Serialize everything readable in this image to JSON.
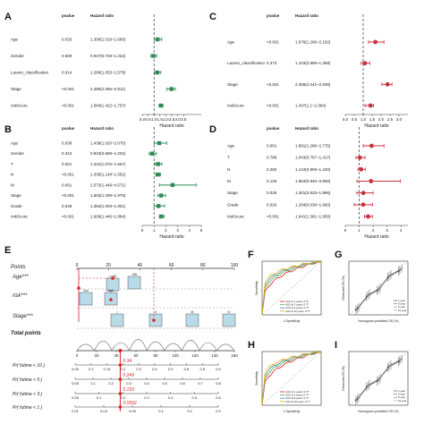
{
  "chart_data": [
    {
      "panel": "A",
      "type": "forest",
      "headers": {
        "p": "pvalue",
        "hr": "Hazard ratio"
      },
      "xlabel": "Hazard ratio",
      "xlim": [
        0,
        5
      ],
      "ref": 1,
      "xticks": [
        "0.0",
        "0.5",
        "1.0",
        "1.5",
        "2.0",
        "2.5",
        "3.0",
        "3.5"
      ],
      "color": "#2e8b57",
      "rows": [
        {
          "label": "Age",
          "p": "0.033",
          "hr": "1.300(1.019~1.660)",
          "est": 1.3,
          "lo": 1.02,
          "hi": 1.66
        },
        {
          "label": "Gender",
          "p": "0.669",
          "hr": "0.947(0.728~1.234)",
          "est": 0.95,
          "lo": 0.73,
          "hi": 1.23
        },
        {
          "label": "Lauren_classification",
          "p": "0.014",
          "hr": "1.280(1.053~1.579)",
          "est": 1.28,
          "lo": 1.05,
          "hi": 1.58
        },
        {
          "label": "Stage",
          "p": "<0.001",
          "hr": "2.480(2.065~2.811)",
          "est": 2.48,
          "lo": 2.07,
          "hi": 2.81
        },
        {
          "label": "riskScore",
          "p": "<0.001",
          "hr": "1.584(1.422~1.757)",
          "est": 1.58,
          "lo": 1.42,
          "hi": 1.76
        }
      ]
    },
    {
      "panel": "B",
      "type": "forest",
      "headers": {
        "p": "pvalue",
        "hr": "Hazard ratio"
      },
      "xlabel": "Hazard ratio",
      "xlim": [
        0,
        5
      ],
      "ref": 1,
      "xticks": [
        "0",
        "1",
        "2",
        "3",
        "4",
        "5"
      ],
      "color": "#2e8b57",
      "rows": [
        {
          "label": "Age",
          "p": "0.038",
          "hr": "1.439(1.020~2.070)",
          "est": 1.44,
          "lo": 1.02,
          "hi": 2.07
        },
        {
          "label": "Gender",
          "p": "0.344",
          "hr": "0.843(0.589~1.202)",
          "est": 0.84,
          "lo": 0.59,
          "hi": 1.2
        },
        {
          "label": "T",
          "p": "0.001",
          "hr": "1.341(1.070~1.667)",
          "est": 1.34,
          "lo": 1.07,
          "hi": 1.67
        },
        {
          "label": "N",
          "p": "<0.001",
          "hr": "1.335(1.148~1.552)",
          "est": 1.34,
          "lo": 1.15,
          "hi": 1.55
        },
        {
          "label": "M",
          "p": "0.001",
          "hr": "2.573(1.449~4.571)",
          "est": 2.57,
          "lo": 1.45,
          "hi": 4.57
        },
        {
          "label": "Stage",
          "p": "<0.001",
          "hr": "1.603(1.299~1.978)",
          "est": 1.6,
          "lo": 1.3,
          "hi": 1.98
        },
        {
          "label": "Grade",
          "p": "0.048",
          "hr": "1.384(1.003~1.901)",
          "est": 1.38,
          "lo": 1.0,
          "hi": 1.9
        },
        {
          "label": "riskScore",
          "p": "<0.001",
          "hr": "1.609(1.446~1.864)",
          "est": 1.61,
          "lo": 1.45,
          "hi": 1.86
        }
      ]
    },
    {
      "panel": "C",
      "type": "forest",
      "headers": {
        "p": "pvalue",
        "hr": "Hazard ratio"
      },
      "xlabel": "Hazard ratio",
      "xlim": [
        0,
        3.5
      ],
      "ref": 1,
      "xticks": [
        "0.0",
        "0.5",
        "1.0",
        "1.5",
        "2.0",
        "2.5",
        "3.0"
      ],
      "color": "#c8323c",
      "rows": [
        {
          "label": "Age",
          "p": "<0.001",
          "hr": "1.676(1.299~2.162)",
          "est": 1.68,
          "lo": 1.3,
          "hi": 2.16
        },
        {
          "label": "Lauren_classification",
          "p": "0.373",
          "hr": "1.103(0.889~1.368)",
          "est": 1.1,
          "lo": 0.89,
          "hi": 1.37
        },
        {
          "label": "Stage",
          "p": "<0.001",
          "hr": "2.359(2.042~2.608)",
          "est": 2.36,
          "lo": 2.04,
          "hi": 2.61
        },
        {
          "label": "riskScore",
          "p": "<0.001",
          "hr": "1.407(1.1~1.584)",
          "est": 1.41,
          "lo": 1.1,
          "hi": 1.58
        }
      ]
    },
    {
      "panel": "D",
      "type": "forest",
      "headers": {
        "p": "pvalue",
        "hr": "Hazard ratio"
      },
      "xlabel": "Hazard ratio",
      "xlim": [
        0,
        4.5
      ],
      "ref": 1,
      "xticks": [
        "0",
        "1",
        "2",
        "3",
        "4"
      ],
      "color": "#c8323c",
      "rows": [
        {
          "label": "Age",
          "p": "0.001",
          "hr": "1.891(1.286~2.776)",
          "est": 1.89,
          "lo": 1.29,
          "hi": 2.78
        },
        {
          "label": "T",
          "p": "0.788",
          "hr": "1.043(0.767~1.417)",
          "est": 1.04,
          "lo": 0.77,
          "hi": 1.42
        },
        {
          "label": "N",
          "p": "0.250",
          "hr": "1.144(0.909~1.440)",
          "est": 1.14,
          "lo": 0.91,
          "hi": 1.44
        },
        {
          "label": "M",
          "p": "0.126",
          "hr": "1.853(0.840~3.956)",
          "est": 1.85,
          "lo": 0.84,
          "hi": 3.96
        },
        {
          "label": "Stage",
          "p": "0.029",
          "hr": "1.301(0.833~1.996)",
          "est": 1.3,
          "lo": 0.83,
          "hi": 2.0
        },
        {
          "label": "Grade",
          "p": "0.020",
          "hr": "1.294(0.638~1.960)",
          "est": 1.29,
          "lo": 0.64,
          "hi": 1.96
        },
        {
          "label": "riskScore",
          "p": "<0.001",
          "hr": "1.641(1.381~1.950)",
          "est": 1.64,
          "lo": 1.38,
          "hi": 1.95
        }
      ]
    },
    {
      "panel": "E",
      "type": "nomogram",
      "points": {
        "label": "Points",
        "ticks": [
          "0",
          "20",
          "40",
          "60",
          "80",
          "100"
        ]
      },
      "variables": [
        {
          "label": "Age***",
          "box_labels": [
            "<=65",
            ">65"
          ]
        },
        {
          "label": "risk***",
          "box_labels": [
            "low",
            "high"
          ]
        },
        {
          "label": "Stage***",
          "box_labels": [
            "I",
            "II",
            "III",
            "IV"
          ]
        }
      ],
      "total_points": {
        "label": "Total points",
        "ticks": [
          "0",
          "20",
          "40",
          "60",
          "80",
          "100",
          "120",
          "140",
          "160"
        ]
      },
      "survival_rows": [
        {
          "label": "Pr( futime < 10 )",
          "ticks": [
            "0.05",
            "0.1",
            "0.15",
            "0.2",
            "0.3",
            "0.4",
            "0.5",
            "0.6",
            "0.8",
            "0.9"
          ],
          "value": "0.34"
        },
        {
          "label": "Pr( futime < 5 )",
          "ticks": [
            "0.05",
            "0.1",
            "0.2",
            "0.3",
            "0.4",
            "0.5",
            "0.6",
            "0.7",
            "0.8"
          ],
          "value": "0.249"
        },
        {
          "label": "Pr( futime < 3 )",
          "ticks": [
            "0.05",
            "0.1",
            "0.2",
            "0.3",
            "0.4",
            "0.5",
            "0.6"
          ],
          "value": "0.193"
        },
        {
          "label": "Pr( futime < 1 )",
          "ticks": [
            "0.01",
            "0.03",
            "0.05",
            "0.1",
            "0.2",
            "0.3"
          ],
          "value": "0.0592"
        }
      ],
      "marker_total": 44,
      "color": "#d62728"
    },
    {
      "panel": "F",
      "type": "roc",
      "xlabel": "1-Specificity",
      "ylabel": "Sensitivity",
      "legend": [
        "AUC at 1 years: 0.??",
        "AUC at 3 years: 0.??",
        "AUC at 5 years: 0.??",
        "AUC at 10 years: 0.??"
      ],
      "series_colors": [
        "#e41a1c",
        "#4daf4a",
        "#377eb8",
        "#e6ab02"
      ]
    },
    {
      "panel": "G",
      "type": "calibration",
      "xlabel": "Nomogram-predicted OS (%)",
      "ylabel": "Observed OS (%)",
      "legend": [
        "1-year",
        "3-year",
        "5-year",
        "10-year"
      ]
    },
    {
      "panel": "H",
      "type": "roc",
      "xlabel": "1-Specificity",
      "ylabel": "Sensitivity",
      "legend": [
        "AUC at 1 years: 0.??",
        "AUC at 3 years: 0.??",
        "AUC at 5 years: 0.??",
        "AUC at 10 years: 0.??"
      ],
      "series_colors": [
        "#e41a1c",
        "#4daf4a",
        "#377eb8",
        "#e6ab02"
      ]
    },
    {
      "panel": "I",
      "type": "calibration",
      "xlabel": "Nomogram-predicted OS (%)",
      "ylabel": "Observed OS (%)",
      "legend": [
        "1-year",
        "3-year",
        "5-year",
        "10-year"
      ]
    }
  ]
}
